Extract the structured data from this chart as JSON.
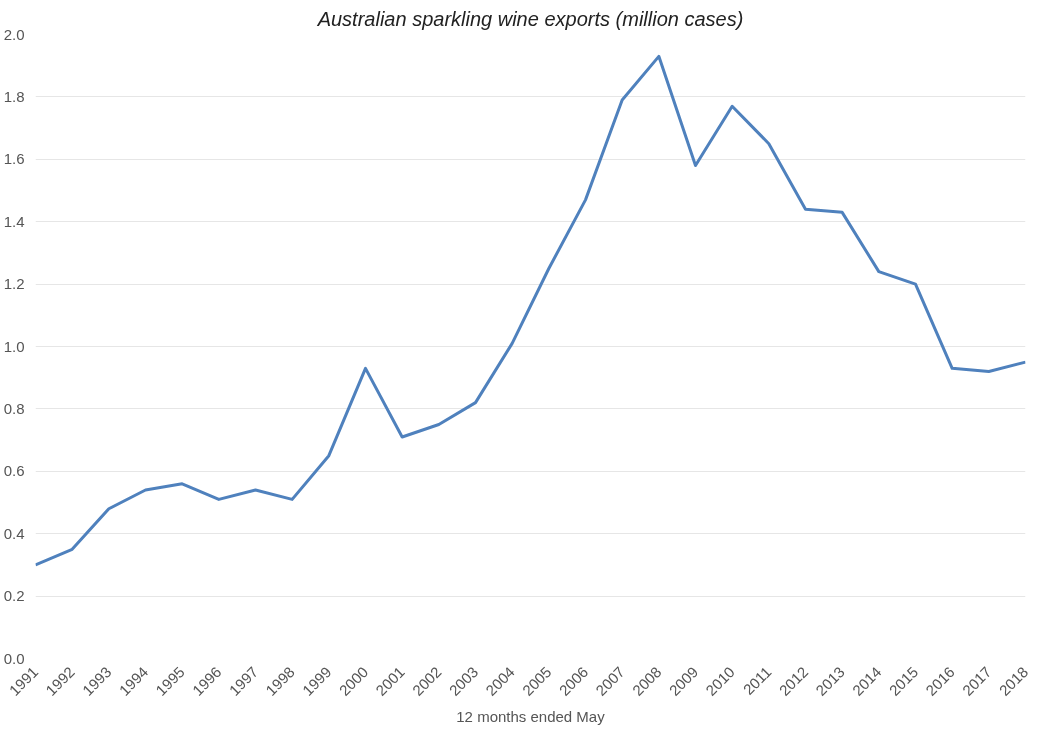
{
  "chart_data": {
    "type": "line",
    "title": "Australian sparkling wine exports (million cases)",
    "xlabel": "12 months ended May",
    "categories": [
      "1991",
      "1992",
      "1993",
      "1994",
      "1995",
      "1996",
      "1997",
      "1998",
      "1999",
      "2000",
      "2001",
      "2002",
      "2003",
      "2004",
      "2005",
      "2006",
      "2007",
      "2008",
      "2009",
      "2010",
      "2011",
      "2012",
      "2013",
      "2014",
      "2015",
      "2016",
      "2017",
      "2018"
    ],
    "series": [
      {
        "color": "#4f81bd",
        "values": [
          0.3,
          0.35,
          0.48,
          0.54,
          0.56,
          0.51,
          0.54,
          0.51,
          0.65,
          0.93,
          0.71,
          0.75,
          0.82,
          1.01,
          1.25,
          1.47,
          1.79,
          1.93,
          1.58,
          1.77,
          1.65,
          1.44,
          1.43,
          1.24,
          1.2,
          0.93,
          0.92,
          0.95
        ]
      }
    ],
    "ylim": [
      0,
      2.0
    ],
    "yticks": [
      {
        "value": 0,
        "label": "0.0"
      },
      {
        "value": 0.2,
        "label": "0.2"
      },
      {
        "value": 0.4,
        "label": "0.4"
      },
      {
        "value": 0.6,
        "label": "0.6"
      },
      {
        "value": 0.8,
        "label": "0.8"
      },
      {
        "value": 1.0,
        "label": "1.0"
      },
      {
        "value": 1.2,
        "label": "1.2"
      },
      {
        "value": 1.4,
        "label": "1.4"
      },
      {
        "value": 1.6,
        "label": "1.6"
      },
      {
        "value": 1.8,
        "label": "1.8"
      },
      {
        "value": 2.0,
        "label": "2.0"
      }
    ],
    "grid": "y",
    "marker": "none",
    "line_style": "solid"
  }
}
